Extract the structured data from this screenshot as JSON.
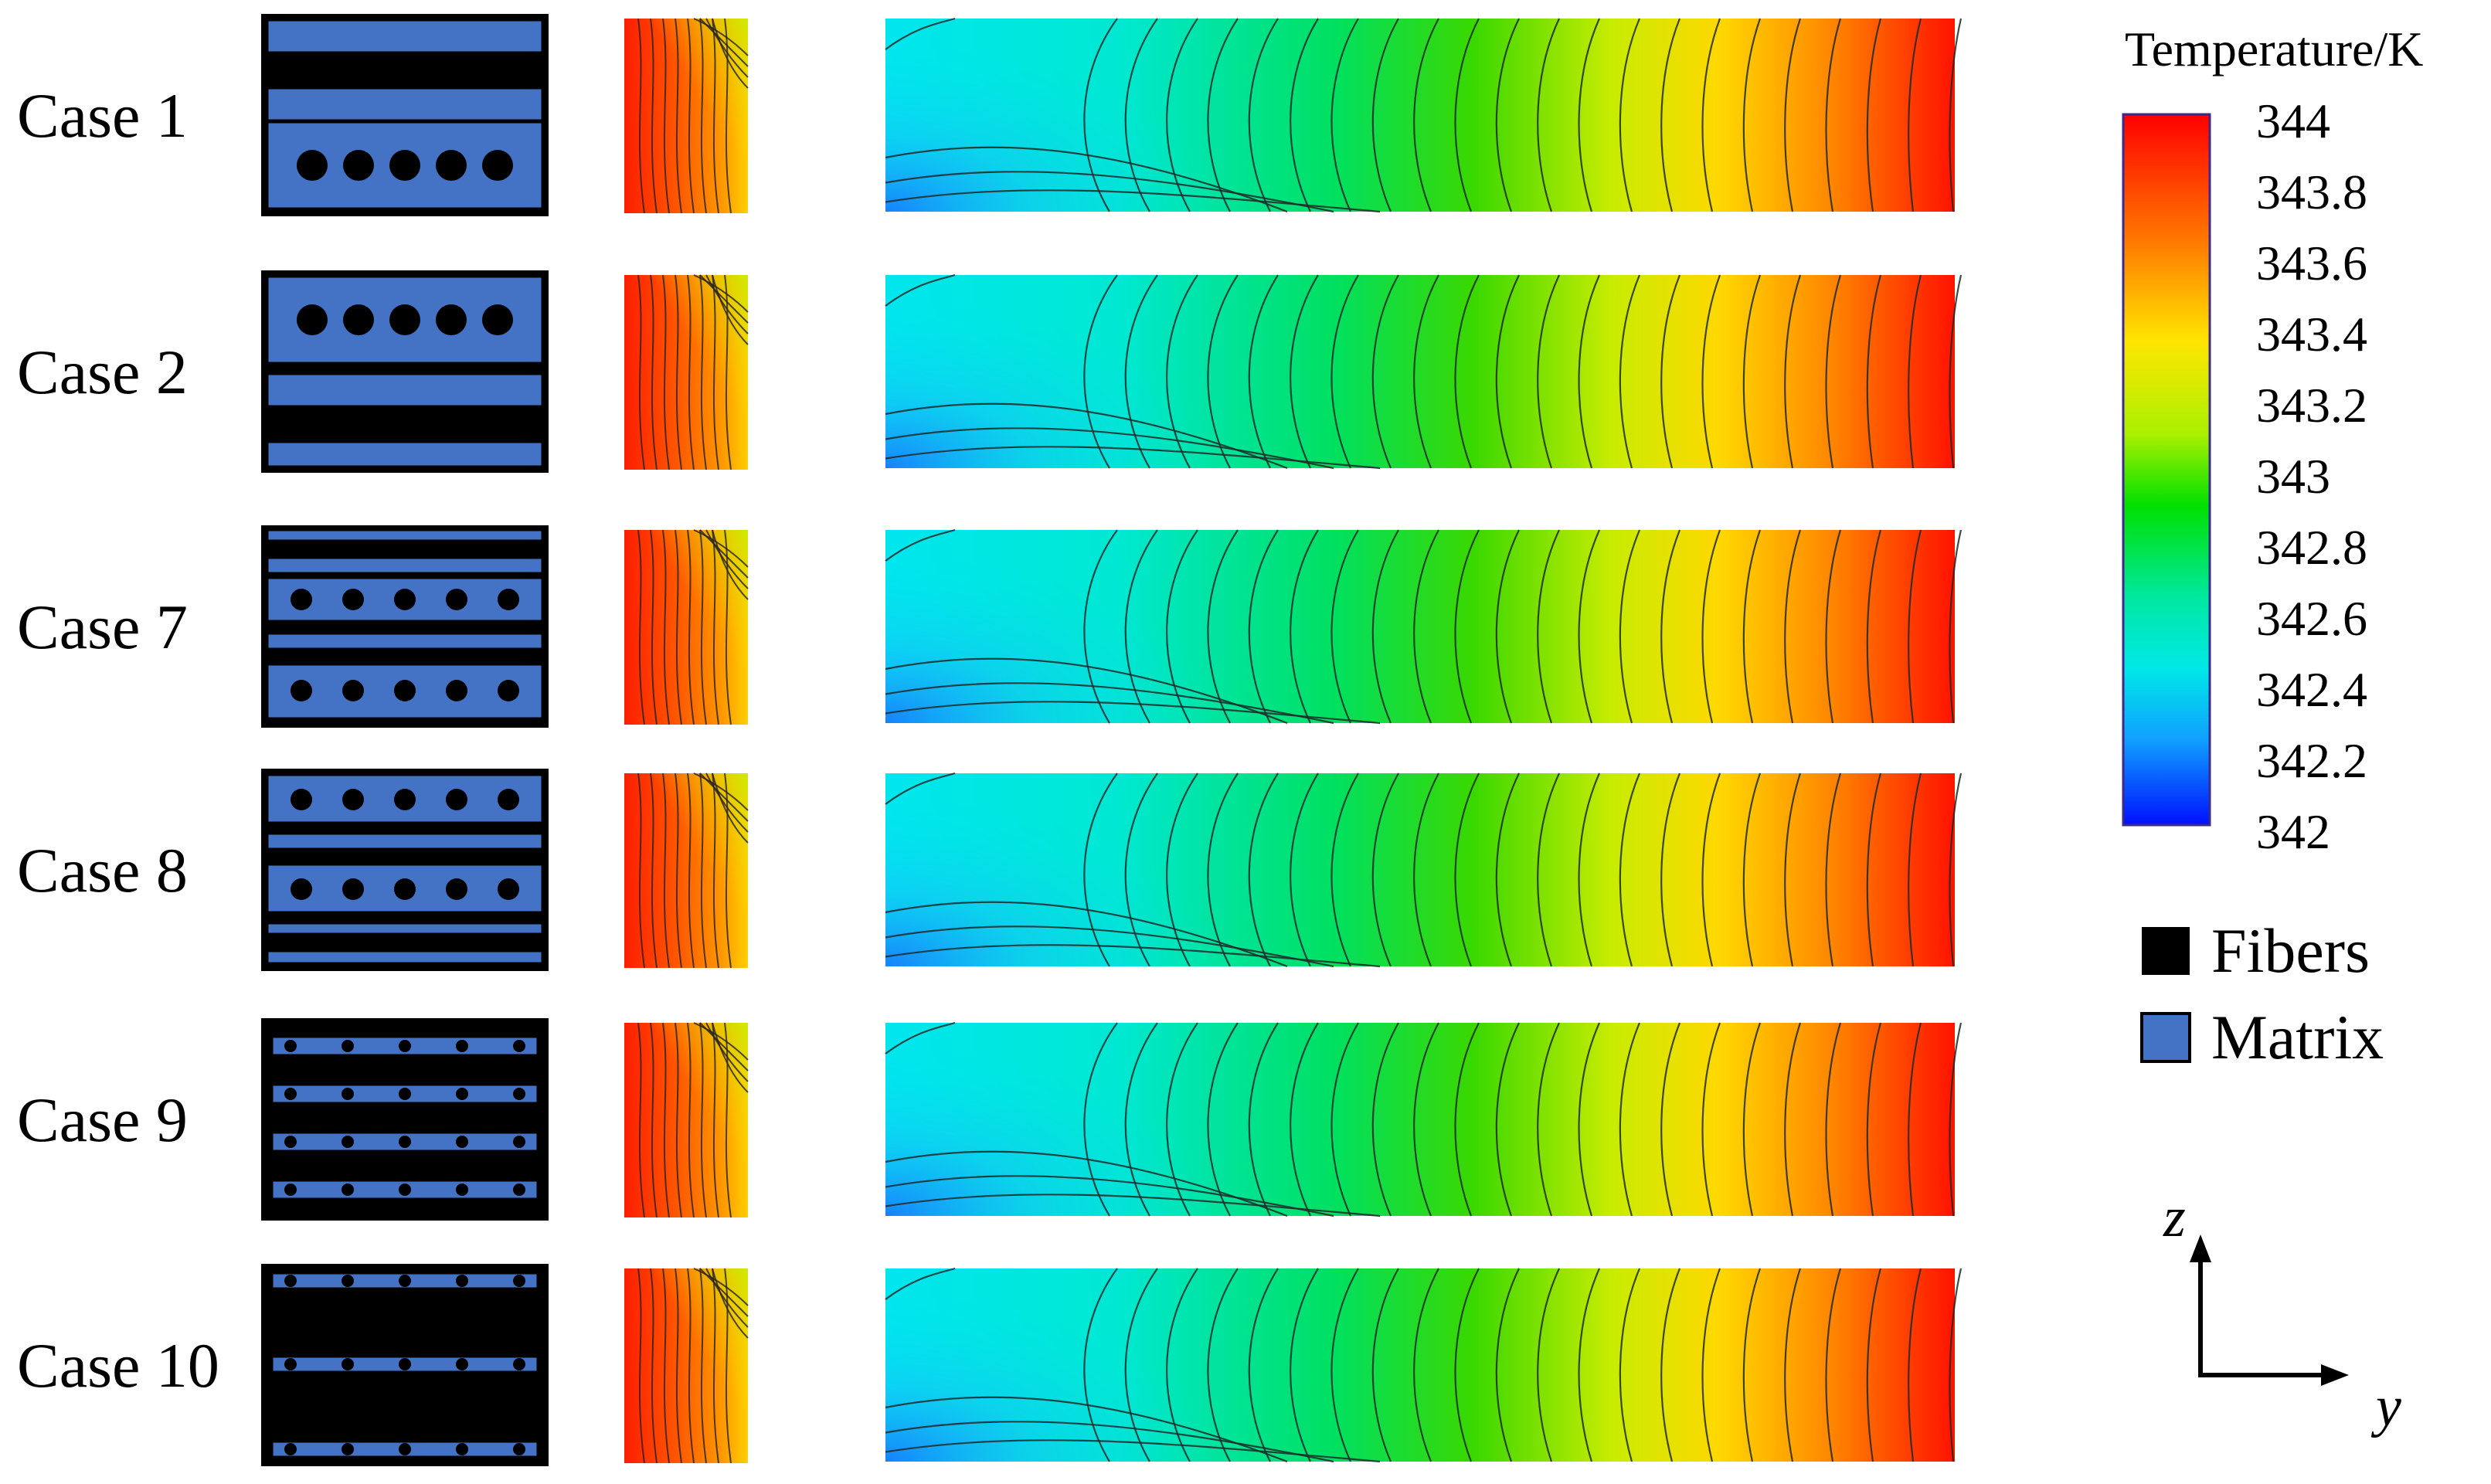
{
  "cases": [
    {
      "label": "Case 1",
      "layout": "c1"
    },
    {
      "label": "Case 2",
      "layout": "c2"
    },
    {
      "label": "Case 7",
      "layout": "c7"
    },
    {
      "label": "Case 8",
      "layout": "c8"
    },
    {
      "label": "Case 9",
      "layout": "c9"
    },
    {
      "label": "Case 10",
      "layout": "c10"
    }
  ],
  "colorbar": {
    "title": "Temperature/K",
    "ticks": [
      "344",
      "343.8",
      "343.6",
      "343.4",
      "343.2",
      "343",
      "342.8",
      "342.6",
      "342.4",
      "342.2",
      "342"
    ],
    "min": 342,
    "max": 344,
    "colormap": "rainbow (blue-cyan-green-yellow-red)"
  },
  "materials": [
    {
      "name": "Fibers",
      "color": "#000000"
    },
    {
      "name": "Matrix",
      "color": "#4472C4"
    }
  ],
  "axes": {
    "vertical": "z",
    "horizontal": "y"
  }
}
